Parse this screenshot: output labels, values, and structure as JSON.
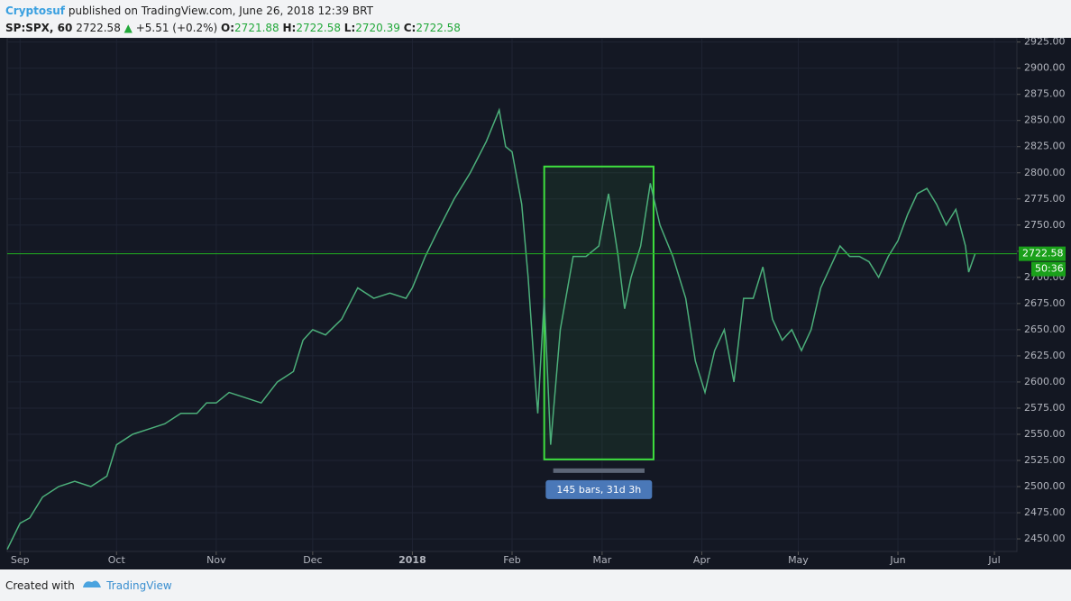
{
  "header": {
    "author": "Cryptosuf",
    "published": "published on TradingView.com, June 26, 2018 12:39 BRT",
    "symbol": "SP:SPX, 60",
    "price": "2722.58",
    "arrow": "▲",
    "change": "+5.51 (+0.2%)",
    "o_label": "O:",
    "open": "2721.88",
    "h_label": "H:",
    "high": "2722.58",
    "l_label": "L:",
    "low": "2720.39",
    "c_label": "C:",
    "close": "2722.58"
  },
  "footer": {
    "created": "Created with",
    "brand": "TradingView"
  },
  "chart_data": {
    "type": "line",
    "color": "#4caf7a",
    "grid": true,
    "x": [
      -4,
      0,
      3,
      7,
      12,
      17,
      22,
      27,
      30,
      35,
      40,
      45,
      50,
      55,
      58,
      61,
      65,
      70,
      75,
      80,
      85,
      88,
      91,
      95,
      100,
      105,
      110,
      115,
      120,
      122,
      126,
      130,
      135,
      140,
      145,
      149,
      151,
      153,
      156,
      158,
      160,
      161,
      163,
      165,
      168,
      172,
      176,
      180,
      183,
      186,
      188,
      190,
      193,
      196,
      199,
      203,
      207,
      210,
      213,
      216,
      219,
      222,
      225,
      228,
      231,
      234,
      237,
      240,
      243,
      246,
      249,
      252,
      255,
      258,
      261,
      264,
      267,
      270,
      273,
      276,
      279,
      282,
      285,
      288,
      291,
      294,
      295,
      297
    ],
    "values": [
      2440,
      2465,
      2470,
      2490,
      2500,
      2505,
      2500,
      2510,
      2540,
      2550,
      2555,
      2560,
      2570,
      2570,
      2580,
      2580,
      2590,
      2585,
      2580,
      2600,
      2610,
      2640,
      2650,
      2645,
      2660,
      2690,
      2680,
      2685,
      2680,
      2690,
      2720,
      2745,
      2775,
      2800,
      2830,
      2860,
      2825,
      2820,
      2770,
      2700,
      2610,
      2570,
      2680,
      2540,
      2650,
      2720,
      2720,
      2730,
      2780,
      2720,
      2670,
      2700,
      2730,
      2790,
      2750,
      2720,
      2680,
      2620,
      2590,
      2630,
      2650,
      2600,
      2680,
      2680,
      2710,
      2660,
      2640,
      2650,
      2630,
      2650,
      2690,
      2710,
      2730,
      2720,
      2720,
      2715,
      2700,
      2720,
      2735,
      2760,
      2780,
      2785,
      2770,
      2750,
      2765,
      2730,
      2705,
      2722.58
    ],
    "xlim": [
      -4,
      310
    ],
    "ylim": [
      2438,
      2929
    ],
    "xticks": [
      {
        "value": 0,
        "label": "Sep"
      },
      {
        "value": 30,
        "label": "Oct"
      },
      {
        "value": 61,
        "label": "Nov"
      },
      {
        "value": 91,
        "label": "Dec"
      },
      {
        "value": 122,
        "label": "2018"
      },
      {
        "value": 153,
        "label": "Feb"
      },
      {
        "value": 181,
        "label": "Mar"
      },
      {
        "value": 212,
        "label": "Apr"
      },
      {
        "value": 242,
        "label": "May"
      },
      {
        "value": 273,
        "label": "Jun"
      },
      {
        "value": 303,
        "label": "Jul"
      }
    ],
    "yticks": [
      {
        "value": 2450,
        "label": "2450.00"
      },
      {
        "value": 2475,
        "label": "2475.00"
      },
      {
        "value": 2500,
        "label": "2500.00"
      },
      {
        "value": 2525,
        "label": "2525.00"
      },
      {
        "value": 2550,
        "label": "2550.00"
      },
      {
        "value": 2575,
        "label": "2575.00"
      },
      {
        "value": 2600,
        "label": "2600.00"
      },
      {
        "value": 2625,
        "label": "2625.00"
      },
      {
        "value": 2650,
        "label": "2650.00"
      },
      {
        "value": 2675,
        "label": "2675.00"
      },
      {
        "value": 2700,
        "label": "2700.00"
      },
      {
        "value": 2725,
        "label": "2725.00"
      },
      {
        "value": 2750,
        "label": "2750.00"
      },
      {
        "value": 2775,
        "label": "2775.00"
      },
      {
        "value": 2800,
        "label": "2800.00"
      },
      {
        "value": 2825,
        "label": "2825.00"
      },
      {
        "value": 2850,
        "label": "2850.00"
      },
      {
        "value": 2875,
        "label": "2875.00"
      },
      {
        "value": 2900,
        "label": "2900.00"
      },
      {
        "value": 2925,
        "label": "2925.00"
      }
    ],
    "last_price": {
      "value": 2722.58,
      "label": "2722.58",
      "countdown": "50:36"
    },
    "range": {
      "x": [
        163,
        197
      ],
      "y": [
        2526,
        2806
      ],
      "label": "145 bars, 31d 3h"
    }
  }
}
